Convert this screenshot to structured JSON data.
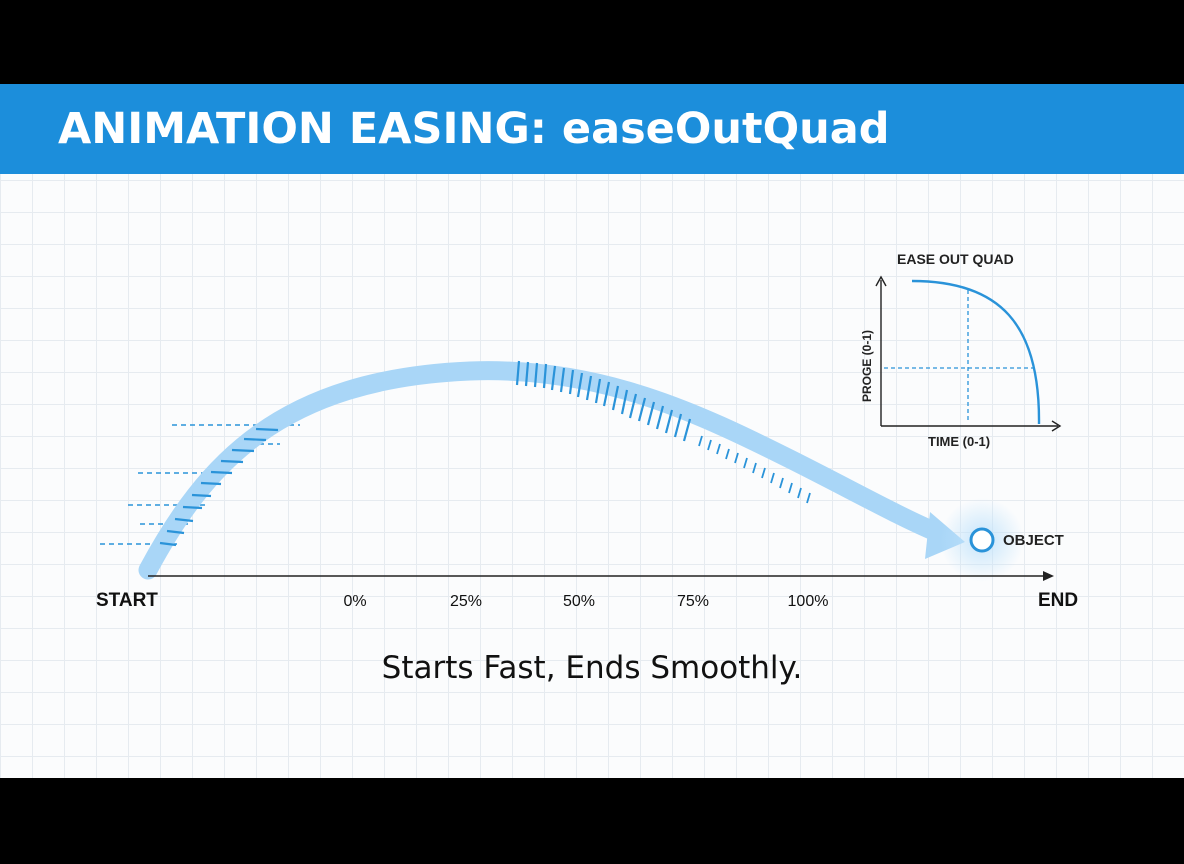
{
  "header": {
    "title": "ANIMATION EASING: easeOutQuad"
  },
  "axis": {
    "start_label": "START",
    "end_label": "END",
    "ticks": [
      "0%",
      "25%",
      "50%",
      "75%",
      "100%"
    ]
  },
  "object": {
    "label": "OBJECT"
  },
  "inset": {
    "title": "EASE OUT QUAD",
    "ylabel": "PROGE (0-1)",
    "xlabel": "TIME (0-1)"
  },
  "caption": "Starts Fast, Ends Smoothly.",
  "colors": {
    "title_bar": "#1c8edb",
    "path": "#a9d6f7",
    "accent": "#2a93d9"
  }
}
